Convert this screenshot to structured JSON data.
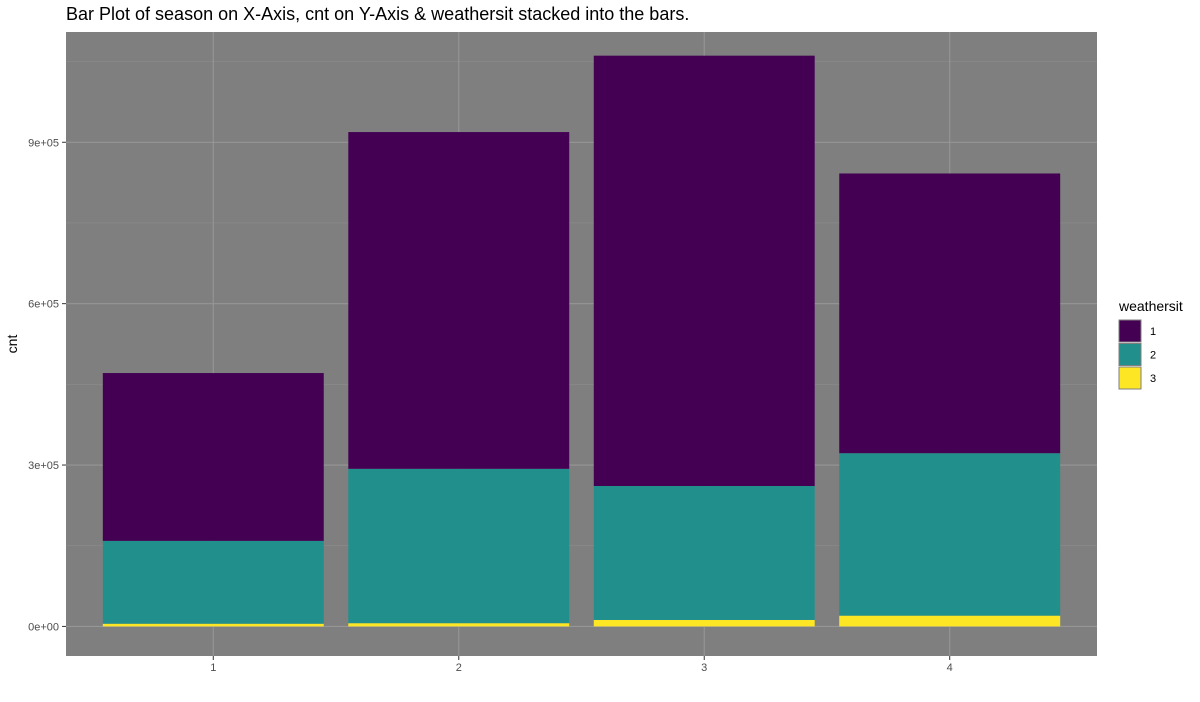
{
  "chart_data": {
    "type": "bar",
    "stacked": true,
    "title": "Bar Plot of season on X-Axis, cnt on Y-Axis & weathersit stacked into the bars.",
    "xlabel": "",
    "ylabel": "cnt",
    "categories": [
      "1",
      "2",
      "3",
      "4"
    ],
    "series": [
      {
        "name": "1",
        "color": "#440154",
        "values": [
          312000,
          626000,
          800000,
          520000
        ]
      },
      {
        "name": "2",
        "color": "#21908C",
        "values": [
          154000,
          287000,
          249000,
          302000
        ]
      },
      {
        "name": "3",
        "color": "#FDE725",
        "values": [
          5000,
          6000,
          12000,
          20000
        ]
      }
    ],
    "ylim": [
      -55000,
      1105000
    ],
    "yticks": [
      0,
      300000,
      600000,
      900000
    ],
    "ytick_labels": [
      "0e+00",
      "3e+05",
      "6e+05",
      "9e+05"
    ],
    "grid": true,
    "background": "#7f7f7f",
    "legend": {
      "title": "weathersit",
      "position": "right"
    }
  }
}
